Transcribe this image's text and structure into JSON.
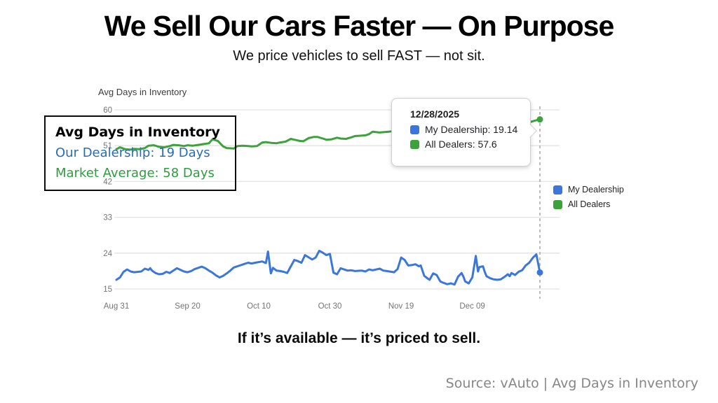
{
  "header": {
    "title": "We Sell Our Cars Faster — On Purpose",
    "subtitle": "We price vehicles to sell FAST — not sit."
  },
  "chart": {
    "title_label": "Avg Days in Inventory"
  },
  "callout": {
    "title": "Avg Days in Inventory",
    "line1": "Our Dealership: 19 Days",
    "line2": "Market Average: 58 Days"
  },
  "tooltip": {
    "date": "12/28/2025",
    "rows": [
      {
        "text": "My Dealership: 19.14",
        "color": "#3B76DB"
      },
      {
        "text": "All Dealers: 57.6",
        "color": "#3EA23C"
      }
    ]
  },
  "legend": {
    "items": [
      {
        "label": "My Dealership",
        "color": "#3B76DB"
      },
      {
        "label": "All Dealers",
        "color": "#3EA23C"
      }
    ]
  },
  "footer": {
    "tagline": "If it’s available — it’s priced to sell.",
    "source": "Source: vAuto | Avg Days in Inventory"
  },
  "colors": {
    "blue": "#3B76DB",
    "green": "#3EA23C",
    "grid": "#e3e3e3",
    "axis_text": "#757575",
    "dashed": "#a0a0a0"
  },
  "chart_data": {
    "type": "line",
    "title": "Avg Days in Inventory",
    "x_days": 119,
    "x_ticks": [
      {
        "label": "Aug 31",
        "day": 0
      },
      {
        "label": "Sep 20",
        "day": 20
      },
      {
        "label": "Oct 10",
        "day": 40
      },
      {
        "label": "Oct 30",
        "day": 60
      },
      {
        "label": "Nov 19",
        "day": 80
      },
      {
        "label": "Dec 09",
        "day": 100
      }
    ],
    "y_ticks": [
      60,
      51,
      42,
      33,
      24,
      15
    ],
    "ylim": [
      15,
      60
    ],
    "grid": true,
    "legend_position": "right",
    "annotation": {
      "dashed_day": 119,
      "date": "12/28/2025"
    },
    "series": [
      {
        "name": "My Dealership",
        "color": "#3B76DB",
        "end_value": 19.14,
        "points": [
          [
            0,
            17.3
          ],
          [
            1,
            17.9
          ],
          [
            2,
            19.3
          ],
          [
            3,
            19.9
          ],
          [
            4,
            19.4
          ],
          [
            5,
            19.2
          ],
          [
            7,
            19.4
          ],
          [
            8,
            20.1
          ],
          [
            9,
            19.8
          ],
          [
            9.5,
            20.2
          ],
          [
            10,
            19.6
          ],
          [
            11,
            19.0
          ],
          [
            12,
            18.7
          ],
          [
            13,
            18.8
          ],
          [
            14,
            19.3
          ],
          [
            15,
            19.0
          ],
          [
            16,
            19.6
          ],
          [
            17,
            20.2
          ],
          [
            18,
            19.8
          ],
          [
            19,
            19.4
          ],
          [
            20,
            19.2
          ],
          [
            21,
            19.5
          ],
          [
            22,
            20.0
          ],
          [
            24,
            20.6
          ],
          [
            25,
            20.2
          ],
          [
            26,
            19.6
          ],
          [
            27,
            19.1
          ],
          [
            28,
            18.4
          ],
          [
            29,
            17.9
          ],
          [
            30,
            18.3
          ],
          [
            31,
            18.9
          ],
          [
            32,
            19.6
          ],
          [
            33,
            20.4
          ],
          [
            35,
            21.0
          ],
          [
            36,
            21.3
          ],
          [
            37,
            21.6
          ],
          [
            38,
            21.4
          ],
          [
            39,
            21.6
          ],
          [
            41,
            21.9
          ],
          [
            42,
            21.5
          ],
          [
            42.6,
            24.4
          ],
          [
            43.4,
            18.9
          ],
          [
            44,
            20.3
          ],
          [
            45,
            19.6
          ],
          [
            46,
            19.5
          ],
          [
            47,
            19.3
          ],
          [
            48,
            19.0
          ],
          [
            50,
            22.3
          ],
          [
            51,
            22.0
          ],
          [
            52,
            21.6
          ],
          [
            53,
            23.5
          ],
          [
            55,
            22.4
          ],
          [
            56,
            22.9
          ],
          [
            57,
            24.6
          ],
          [
            58,
            24.1
          ],
          [
            59,
            23.5
          ],
          [
            60,
            23.8
          ],
          [
            61,
            19.1
          ],
          [
            62,
            18.7
          ],
          [
            63,
            20.2
          ],
          [
            65,
            19.6
          ],
          [
            66,
            19.7
          ],
          [
            67,
            19.5
          ],
          [
            69,
            19.6
          ],
          [
            70,
            19.4
          ],
          [
            71,
            19.9
          ],
          [
            72,
            19.7
          ],
          [
            74,
            20.1
          ],
          [
            75,
            19.6
          ],
          [
            76,
            19.5
          ],
          [
            78,
            19.2
          ],
          [
            79,
            20.0
          ],
          [
            80,
            22.9
          ],
          [
            81,
            22.3
          ],
          [
            82,
            20.9
          ],
          [
            83,
            21.0
          ],
          [
            84,
            21.2
          ],
          [
            85,
            20.7
          ],
          [
            85.5,
            20.9
          ],
          [
            86.5,
            18.3
          ],
          [
            87.5,
            17.6
          ],
          [
            88,
            17.3
          ],
          [
            89,
            18.9
          ],
          [
            90,
            18.5
          ],
          [
            91,
            16.9
          ],
          [
            92,
            16.5
          ],
          [
            93,
            16.2
          ],
          [
            94,
            16.4
          ],
          [
            95,
            16.1
          ],
          [
            96,
            18.1
          ],
          [
            97,
            19.0
          ],
          [
            97.5,
            18.1
          ],
          [
            98,
            16.9
          ],
          [
            99,
            16.4
          ],
          [
            100,
            17.9
          ],
          [
            101,
            23.3
          ],
          [
            101.6,
            19.4
          ],
          [
            102,
            20.5
          ],
          [
            103,
            20.7
          ],
          [
            103.5,
            19.3
          ],
          [
            104,
            18.2
          ],
          [
            105,
            17.7
          ],
          [
            106,
            17.4
          ],
          [
            107,
            17.3
          ],
          [
            108,
            17.4
          ],
          [
            109,
            18.0
          ],
          [
            110,
            18.7
          ],
          [
            110.5,
            18.2
          ],
          [
            111,
            19.0
          ],
          [
            112,
            18.5
          ],
          [
            113,
            19.3
          ],
          [
            114,
            19.7
          ],
          [
            115,
            20.9
          ],
          [
            116,
            21.6
          ],
          [
            117,
            22.8
          ],
          [
            118,
            23.7
          ],
          [
            119,
            19.14
          ]
        ]
      },
      {
        "name": "All Dealers",
        "color": "#3EA23C",
        "end_value": 57.6,
        "points": [
          [
            0,
            50.1
          ],
          [
            1,
            50.6
          ],
          [
            2.5,
            50.1
          ],
          [
            4,
            50.0
          ],
          [
            5,
            50.2
          ],
          [
            6.5,
            50.1
          ],
          [
            8,
            50.4
          ],
          [
            9,
            51.0
          ],
          [
            10.5,
            51.1
          ],
          [
            12,
            50.7
          ],
          [
            13.5,
            50.6
          ],
          [
            15,
            50.9
          ],
          [
            16,
            51.2
          ],
          [
            17.5,
            51.1
          ],
          [
            19,
            50.9
          ],
          [
            20,
            51.1
          ],
          [
            21.5,
            51.0
          ],
          [
            23,
            51.2
          ],
          [
            24.5,
            51.4
          ],
          [
            26,
            51.6
          ],
          [
            27,
            52.6
          ],
          [
            28.5,
            52.2
          ],
          [
            30,
            50.8
          ],
          [
            31,
            50.4
          ],
          [
            33,
            50.3
          ],
          [
            34,
            50.9
          ],
          [
            35.5,
            51.0
          ],
          [
            37,
            50.9
          ],
          [
            38,
            50.8
          ],
          [
            39.5,
            50.9
          ],
          [
            41,
            51.8
          ],
          [
            42,
            51.9
          ],
          [
            43.5,
            51.7
          ],
          [
            45,
            51.6
          ],
          [
            46,
            51.8
          ],
          [
            47.5,
            52.0
          ],
          [
            49,
            52.7
          ],
          [
            50,
            52.5
          ],
          [
            51.5,
            52.2
          ],
          [
            52.5,
            52.1
          ],
          [
            54,
            52.9
          ],
          [
            55.5,
            53.2
          ],
          [
            56.5,
            53.2
          ],
          [
            58,
            52.8
          ],
          [
            59,
            52.5
          ],
          [
            60.5,
            52.6
          ],
          [
            62,
            53.0
          ],
          [
            63,
            52.8
          ],
          [
            64.5,
            52.7
          ],
          [
            66,
            53.1
          ],
          [
            67,
            53.4
          ],
          [
            68.5,
            53.5
          ],
          [
            70,
            53.6
          ],
          [
            71,
            53.9
          ],
          [
            72,
            54.5
          ],
          [
            74,
            54.3
          ],
          [
            75,
            54.4
          ],
          [
            76.5,
            54.5
          ],
          [
            78,
            54.7
          ],
          [
            80,
            54.8
          ],
          [
            82,
            55.0
          ],
          [
            84,
            55.1
          ],
          [
            86,
            55.3
          ],
          [
            88,
            55.4
          ],
          [
            90,
            55.6
          ],
          [
            91.5,
            55.7
          ],
          [
            93.5,
            55.9
          ],
          [
            95.5,
            56.0
          ],
          [
            97,
            56.2
          ],
          [
            99,
            56.3
          ],
          [
            101,
            56.5
          ],
          [
            103,
            56.6
          ],
          [
            105,
            56.8
          ],
          [
            107,
            56.9
          ],
          [
            109,
            57.0
          ],
          [
            111,
            57.1
          ],
          [
            113,
            57.2
          ],
          [
            115,
            57.2
          ],
          [
            116.5,
            57.0
          ],
          [
            117.6,
            57.3
          ],
          [
            119,
            57.6
          ]
        ]
      }
    ]
  }
}
